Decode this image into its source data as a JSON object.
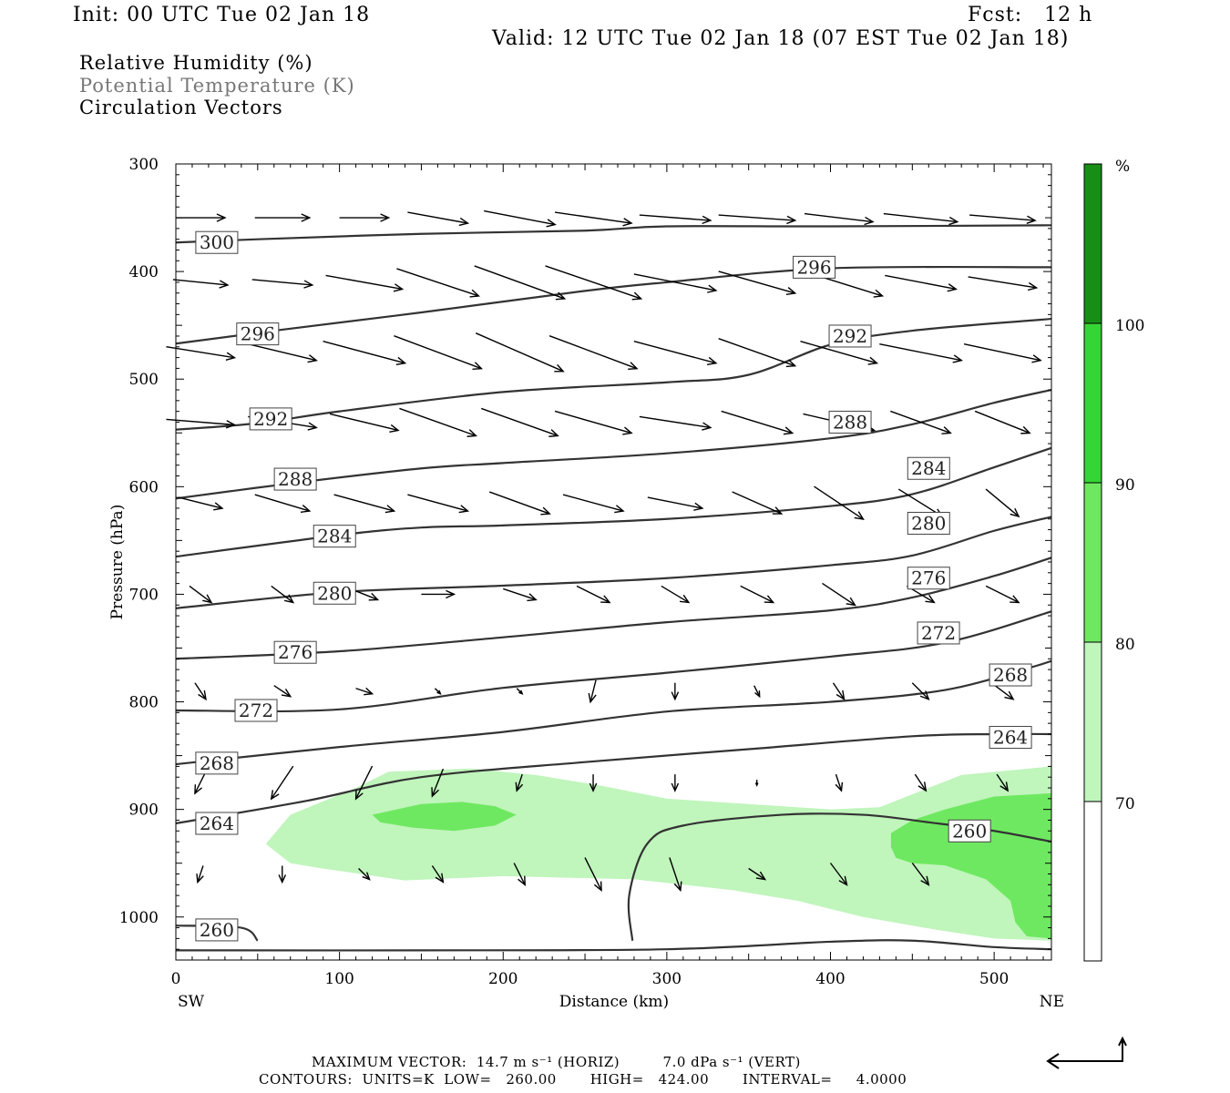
{
  "header": {
    "init": "Init: 00 UTC Tue 02 Jan 18",
    "fcst": "Fcst:   12 h",
    "valid": "Valid: 12 UTC Tue 02 Jan 18 (07 EST Tue 02 Jan 18)"
  },
  "legend": {
    "line1": "Relative Humidity (%)",
    "line2": "Potential Temperature (K)",
    "line3": "Circulation Vectors"
  },
  "footer": {
    "max_vector": "MAXIMUM VECTOR:  14.7 m s⁻¹ (HORIZ)         7.0 dPa s⁻¹ (VERT)",
    "contours": "CONTOURS:  UNITS=K  LOW=   260.00       HIGH=   424.00       INTERVAL=     4.0000"
  },
  "chart_data": {
    "type": "cross-section",
    "xlabel": "Distance (km)",
    "ylabel": "Pressure (hPa)",
    "x_left_label": "SW",
    "x_right_label": "NE",
    "xlim": [
      0,
      535
    ],
    "ylim": [
      1040,
      300
    ],
    "xticks": [
      0,
      100,
      200,
      300,
      400,
      500
    ],
    "yticks": [
      300,
      400,
      500,
      600,
      700,
      800,
      900,
      1000
    ],
    "colorbar": {
      "unit": "%",
      "levels": [
        70,
        80,
        90,
        100
      ],
      "colors": [
        "#ffffff",
        "#c0f5bc",
        "#6fe861",
        "#35d535",
        "#178f17"
      ]
    },
    "theta_contours": [
      {
        "label": "300",
        "pts": [
          [
            0,
            373
          ],
          [
            50,
            370
          ],
          [
            150,
            365
          ],
          [
            250,
            362
          ],
          [
            300,
            358
          ],
          [
            400,
            358
          ],
          [
            535,
            357
          ]
        ],
        "label_at": [
          25,
          373
        ]
      },
      {
        "label": "296",
        "pts": [
          [
            0,
            467
          ],
          [
            60,
            455
          ],
          [
            150,
            438
          ],
          [
            250,
            418
          ],
          [
            300,
            410
          ],
          [
            400,
            397
          ],
          [
            535,
            396
          ]
        ],
        "label_at": [
          50,
          458
        ],
        "label_at2": [
          390,
          396
        ]
      },
      {
        "label": "292",
        "pts": [
          [
            0,
            547
          ],
          [
            50,
            541
          ],
          [
            100,
            530
          ],
          [
            200,
            512
          ],
          [
            300,
            503
          ],
          [
            350,
            496
          ],
          [
            400,
            468
          ],
          [
            450,
            455
          ],
          [
            535,
            444
          ]
        ],
        "label_at": [
          58,
          537
        ],
        "label_at2": [
          412,
          460
        ]
      },
      {
        "label": "288",
        "pts": [
          [
            0,
            611
          ],
          [
            70,
            597
          ],
          [
            150,
            583
          ],
          [
            200,
            578
          ],
          [
            300,
            569
          ],
          [
            400,
            555
          ],
          [
            450,
            542
          ],
          [
            500,
            522
          ],
          [
            535,
            510
          ]
        ],
        "label_at": [
          73,
          593
        ],
        "label_at2": [
          412,
          540
        ]
      },
      {
        "label": "284",
        "pts": [
          [
            0,
            665
          ],
          [
            100,
            645
          ],
          [
            150,
            638
          ],
          [
            200,
            636
          ],
          [
            300,
            630
          ],
          [
            400,
            618
          ],
          [
            450,
            607
          ],
          [
            500,
            582
          ],
          [
            535,
            564
          ]
        ],
        "label_at": [
          97,
          646
        ],
        "label_at2": [
          460,
          583
        ]
      },
      {
        "label": "280",
        "pts": [
          [
            0,
            713
          ],
          [
            100,
            698
          ],
          [
            200,
            692
          ],
          [
            300,
            685
          ],
          [
            400,
            673
          ],
          [
            450,
            664
          ],
          [
            500,
            641
          ],
          [
            535,
            628
          ]
        ],
        "label_at": [
          97,
          699
        ],
        "label_at2": [
          460,
          634
        ]
      },
      {
        "label": "276",
        "pts": [
          [
            0,
            760
          ],
          [
            100,
            753
          ],
          [
            200,
            740
          ],
          [
            300,
            726
          ],
          [
            400,
            715
          ],
          [
            450,
            703
          ],
          [
            500,
            683
          ],
          [
            535,
            666
          ]
        ],
        "label_at": [
          73,
          754
        ],
        "label_at2": [
          460,
          685
        ]
      },
      {
        "label": "272",
        "pts": [
          [
            0,
            808
          ],
          [
            100,
            807
          ],
          [
            200,
            787
          ],
          [
            300,
            773
          ],
          [
            400,
            758
          ],
          [
            470,
            745
          ],
          [
            535,
            716
          ]
        ],
        "label_at": [
          49,
          808
        ],
        "label_at2": [
          466,
          736
        ]
      },
      {
        "label": "268",
        "pts": [
          [
            0,
            858
          ],
          [
            100,
            842
          ],
          [
            200,
            828
          ],
          [
            300,
            809
          ],
          [
            400,
            800
          ],
          [
            470,
            789
          ],
          [
            520,
            769
          ],
          [
            535,
            762
          ]
        ],
        "label_at": [
          25,
          857
        ],
        "label_at2": [
          510,
          775
        ]
      },
      {
        "label": "264",
        "pts": [
          [
            0,
            913
          ],
          [
            80,
            892
          ],
          [
            150,
            870
          ],
          [
            250,
            856
          ],
          [
            350,
            844
          ],
          [
            450,
            832
          ],
          [
            500,
            830
          ],
          [
            535,
            830
          ]
        ],
        "label_at": [
          25,
          913
        ],
        "label_at2": [
          510,
          833
        ]
      },
      {
        "label": "260",
        "pts": [
          [
            0,
            1008
          ],
          [
            40,
            1010
          ],
          [
            50,
            1022
          ]
        ],
        "label_at": [
          25,
          1012
        ]
      },
      {
        "label": "260",
        "pts": [
          [
            279,
            1022
          ],
          [
            277,
            980
          ],
          [
            288,
            932
          ],
          [
            310,
            915
          ],
          [
            370,
            905
          ],
          [
            420,
            905
          ],
          [
            460,
            912
          ],
          [
            500,
            920
          ],
          [
            535,
            930
          ]
        ],
        "label_at": [
          485,
          920
        ]
      },
      {
        "label": "",
        "pts": [
          [
            0,
            1031
          ],
          [
            150,
            1031
          ],
          [
            300,
            1030
          ],
          [
            400,
            1023
          ],
          [
            450,
            1022
          ],
          [
            500,
            1028
          ],
          [
            535,
            1030
          ]
        ]
      }
    ],
    "rh_regions": [
      {
        "level": 70,
        "pts": [
          [
            55,
            932
          ],
          [
            70,
            905
          ],
          [
            110,
            880
          ],
          [
            130,
            865
          ],
          [
            180,
            862
          ],
          [
            220,
            868
          ],
          [
            260,
            878
          ],
          [
            300,
            890
          ],
          [
            350,
            895
          ],
          [
            400,
            900
          ],
          [
            430,
            898
          ],
          [
            460,
            880
          ],
          [
            480,
            868
          ],
          [
            535,
            860
          ],
          [
            535,
            1022
          ],
          [
            500,
            1020
          ],
          [
            465,
            1012
          ],
          [
            420,
            1000
          ],
          [
            380,
            985
          ],
          [
            340,
            975
          ],
          [
            280,
            965
          ],
          [
            200,
            962
          ],
          [
            140,
            966
          ],
          [
            90,
            955
          ],
          [
            70,
            950
          ]
        ]
      },
      {
        "level": 80,
        "pts": [
          [
            120,
            905
          ],
          [
            150,
            895
          ],
          [
            175,
            893
          ],
          [
            195,
            897
          ],
          [
            208,
            905
          ],
          [
            195,
            915
          ],
          [
            170,
            920
          ],
          [
            145,
            917
          ],
          [
            125,
            912
          ]
        ]
      },
      {
        "level": 80,
        "pts": [
          [
            437,
            922
          ],
          [
            450,
            910
          ],
          [
            470,
            900
          ],
          [
            500,
            888
          ],
          [
            535,
            885
          ],
          [
            535,
            1020
          ],
          [
            520,
            1018
          ],
          [
            513,
            1005
          ],
          [
            510,
            985
          ],
          [
            495,
            965
          ],
          [
            470,
            952
          ],
          [
            450,
            950
          ],
          [
            440,
            945
          ],
          [
            437,
            935
          ]
        ]
      }
    ],
    "vectors": [
      {
        "p": 350,
        "x": [
          15,
          65,
          115,
          160,
          210,
          255,
          305,
          355,
          405,
          455,
          505
        ],
        "u": [
          18,
          20,
          18,
          22,
          26,
          28,
          26,
          28,
          25,
          27,
          24
        ],
        "w": [
          0,
          0,
          0,
          -4,
          -5,
          -4,
          -2,
          -2,
          -3,
          -3,
          -2
        ]
      },
      {
        "p": 410,
        "x": [
          15,
          65,
          115,
          160,
          210,
          255,
          305,
          355,
          405,
          455,
          505
        ],
        "u": [
          20,
          22,
          28,
          30,
          33,
          35,
          30,
          28,
          32,
          26,
          25
        ],
        "w": [
          -2,
          -2,
          -5,
          -10,
          -12,
          -12,
          -6,
          -8,
          -10,
          -5,
          -4
        ]
      },
      {
        "p": 475,
        "x": [
          15,
          65,
          115,
          160,
          210,
          255,
          305,
          355,
          405,
          455,
          505
        ],
        "u": [
          25,
          25,
          30,
          32,
          32,
          32,
          30,
          28,
          28,
          30,
          28
        ],
        "w": [
          -4,
          -6,
          -8,
          -12,
          -14,
          -12,
          -8,
          -10,
          -8,
          -6,
          -6
        ]
      },
      {
        "p": 540,
        "x": [
          15,
          65,
          115,
          160,
          210,
          255,
          305,
          355,
          405,
          455,
          505
        ],
        "u": [
          25,
          25,
          25,
          28,
          28,
          28,
          26,
          26,
          26,
          22,
          20
        ],
        "w": [
          -2,
          -4,
          -6,
          -10,
          -10,
          -8,
          -4,
          -8,
          -6,
          -8,
          -8
        ]
      },
      {
        "p": 615,
        "x": [
          15,
          65,
          115,
          160,
          210,
          255,
          305,
          355,
          405,
          455,
          505
        ],
        "u": [
          16,
          20,
          22,
          22,
          22,
          22,
          20,
          18,
          18,
          16,
          12
        ],
        "w": [
          -4,
          -6,
          -6,
          -6,
          -8,
          -6,
          -4,
          -8,
          -12,
          -10,
          -10
        ]
      },
      {
        "p": 700,
        "x": [
          15,
          65,
          115,
          160,
          210,
          255,
          305,
          355,
          405,
          455,
          505
        ],
        "u": [
          8,
          8,
          10,
          12,
          12,
          12,
          10,
          12,
          12,
          10,
          12
        ],
        "w": [
          -6,
          -6,
          -4,
          0,
          -4,
          -6,
          -6,
          -6,
          -8,
          -6,
          -6
        ]
      },
      {
        "p": 790,
        "x": [
          15,
          65,
          115,
          160,
          210,
          255,
          305,
          355,
          405,
          455,
          505
        ],
        "u": [
          4,
          6,
          6,
          2,
          2,
          -2,
          0,
          2,
          4,
          6,
          8
        ],
        "w": [
          -6,
          -4,
          -2,
          -2,
          -2,
          -8,
          -6,
          -4,
          -6,
          -6,
          -6
        ]
      },
      {
        "p": 875,
        "x": [
          15,
          65,
          115,
          160,
          210,
          255,
          305,
          355,
          405,
          455,
          505
        ],
        "u": [
          -4,
          -8,
          -6,
          -4,
          -2,
          0,
          0,
          0,
          2,
          4,
          4
        ],
        "w": [
          -8,
          -12,
          -12,
          -10,
          -6,
          -6,
          -6,
          -2,
          -6,
          -6,
          -6
        ]
      },
      {
        "p": 960,
        "x": [
          15,
          65,
          115,
          160,
          210,
          255,
          305,
          355,
          405,
          455,
          505
        ],
        "u": [
          -2,
          0,
          4,
          4,
          4,
          6,
          4,
          6,
          6,
          6,
          0
        ],
        "w": [
          -6,
          -6,
          -4,
          -6,
          -8,
          -12,
          -12,
          -4,
          -8,
          -8,
          0
        ]
      }
    ]
  }
}
